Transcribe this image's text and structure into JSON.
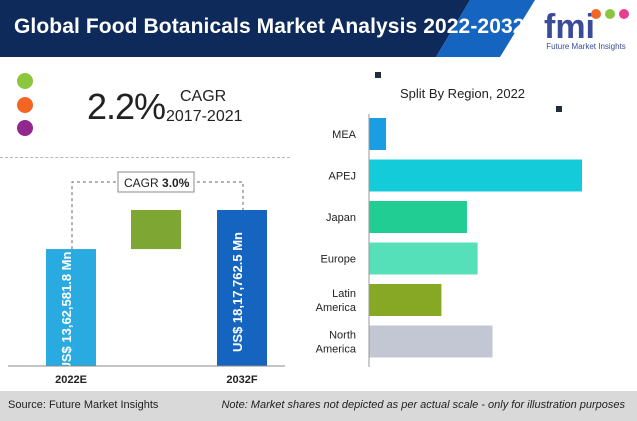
{
  "header": {
    "title": "Global Food Botanicals Market Analysis 2022-2032",
    "logo_text": "fmi",
    "logo_subtitle": "Future Market Insights",
    "colors": {
      "dark": "#0e2a5a",
      "accent": "#1565c0"
    }
  },
  "cagr_block": {
    "value": "2.2%",
    "label": "CAGR",
    "period": "2017-2021",
    "dot_colors": [
      "#8cc63f",
      "#f26522",
      "#92278f"
    ]
  },
  "chart_data": [
    {
      "type": "bar",
      "categories": [
        "2022E",
        "2032F"
      ],
      "values": [
        1362581.8,
        1817762.5
      ],
      "value_labels": [
        "US$ 13,62,581.8 Mn",
        "US$ 18,17,762.5 Mn"
      ],
      "colors": [
        "#29abe2",
        "#1565c0"
      ],
      "increment_color": "#7ea632",
      "cagr_callout": {
        "label": "CAGR",
        "value": "3.0%"
      }
    },
    {
      "type": "bar",
      "orientation": "horizontal",
      "title": "Split By Region, 2022",
      "categories": [
        "MEA",
        "APEJ",
        "Japan",
        "Europe",
        "Latin America",
        "North America"
      ],
      "values": [
        8,
        100,
        46,
        51,
        34,
        58
      ],
      "colors": [
        "#1b9de2",
        "#14cbd9",
        "#21cd92",
        "#55e0b9",
        "#87a824",
        "#c3c7d4"
      ]
    }
  ],
  "footer": {
    "source": "Source: Future Market Insights",
    "note": "Note: Market shares not depicted as per actual scale - only for illustration purposes"
  }
}
